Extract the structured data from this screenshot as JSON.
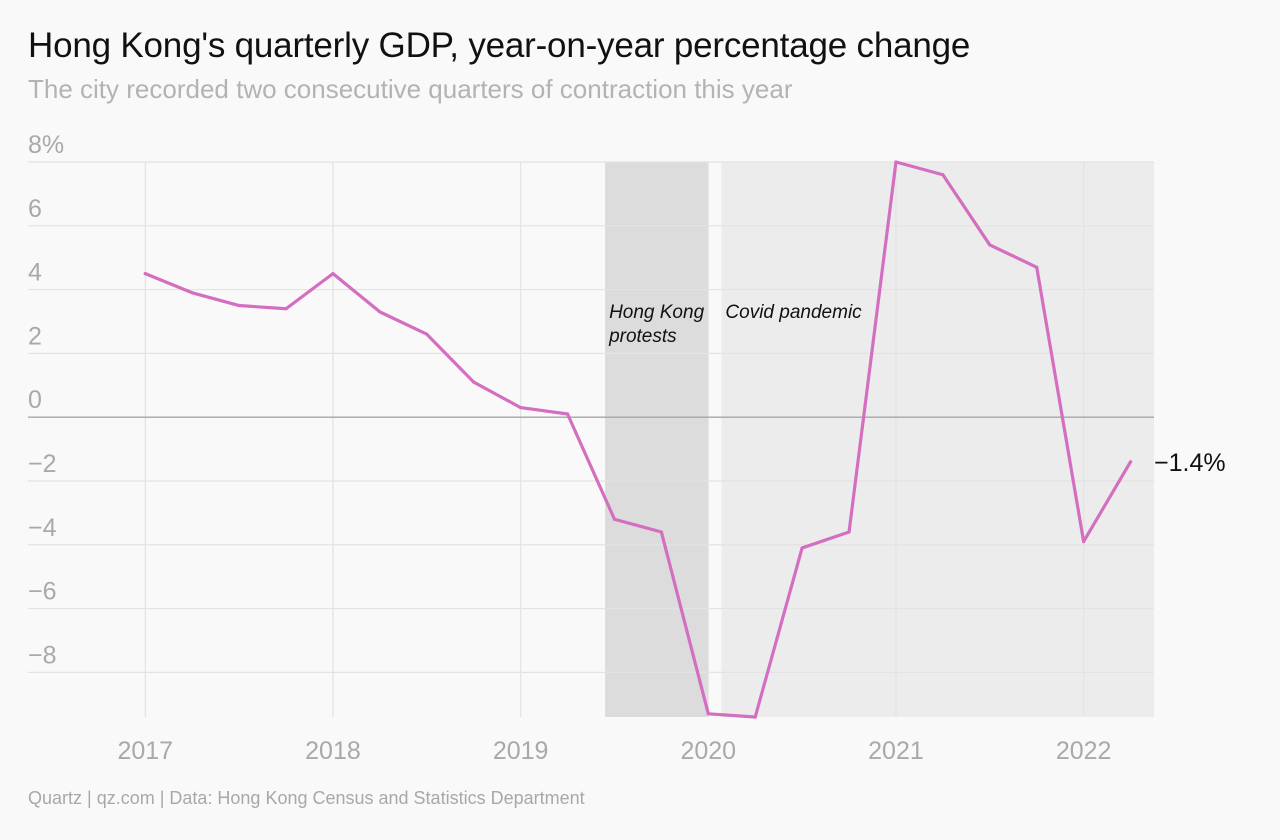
{
  "header": {
    "title": "Hong Kong's quarterly GDP, year-on-year percentage change",
    "subtitle": "The city recorded two consecutive quarters of contraction this year"
  },
  "footer": {
    "source": "Quartz | qz.com | Data: Hong Kong Census and Statistics Department"
  },
  "chart_data": {
    "type": "line",
    "title": "Hong Kong's quarterly GDP, year-on-year percentage change",
    "subtitle": "The city recorded two consecutive quarters of contraction this year",
    "xlabel": "",
    "ylabel": "",
    "xlim": [
      2016.375,
      2022.375
    ],
    "ylim": [
      -9.4,
      8
    ],
    "x_ticks": [
      2017,
      2018,
      2019,
      2020,
      2021,
      2022
    ],
    "x_tick_labels": [
      "2017",
      "2018",
      "2019",
      "2020",
      "2021",
      "2022"
    ],
    "y_ticks": [
      8,
      6,
      4,
      2,
      0,
      -2,
      -4,
      -6,
      -8
    ],
    "y_tick_labels": [
      "8%",
      "6",
      "4",
      "2",
      "0",
      "−2",
      "−4",
      "−6",
      "−8"
    ],
    "grid": true,
    "zero_line": true,
    "series": [
      {
        "color": "#d36ec0",
        "x": [
          2017.0,
          2017.25,
          2017.5,
          2017.75,
          2018.0,
          2018.25,
          2018.5,
          2018.75,
          2019.0,
          2019.25,
          2019.5,
          2019.75,
          2020.0,
          2020.25,
          2020.5,
          2020.75,
          2021.0,
          2021.25,
          2021.5,
          2021.75,
          2022.0,
          2022.25
        ],
        "values": [
          4.5,
          3.9,
          3.5,
          3.4,
          4.5,
          3.3,
          2.6,
          1.1,
          0.3,
          0.1,
          -3.2,
          -3.6,
          -9.3,
          -9.4,
          -4.1,
          -3.6,
          8.0,
          7.6,
          5.4,
          4.7,
          -3.9,
          -1.4
        ]
      }
    ],
    "shaded_regions": [
      {
        "label": "Hong Kong protests",
        "label_lines": [
          "Hong Kong",
          "protests"
        ],
        "x_start": 2019.45,
        "x_end": 2020.0,
        "color": "#dcdcdc"
      },
      {
        "label": "Covid pandemic",
        "label_lines": [
          "Covid pandemic"
        ],
        "x_start": 2020.07,
        "x_end": 2022.375,
        "color": "#ececec"
      }
    ],
    "end_label": "−1.4%"
  }
}
